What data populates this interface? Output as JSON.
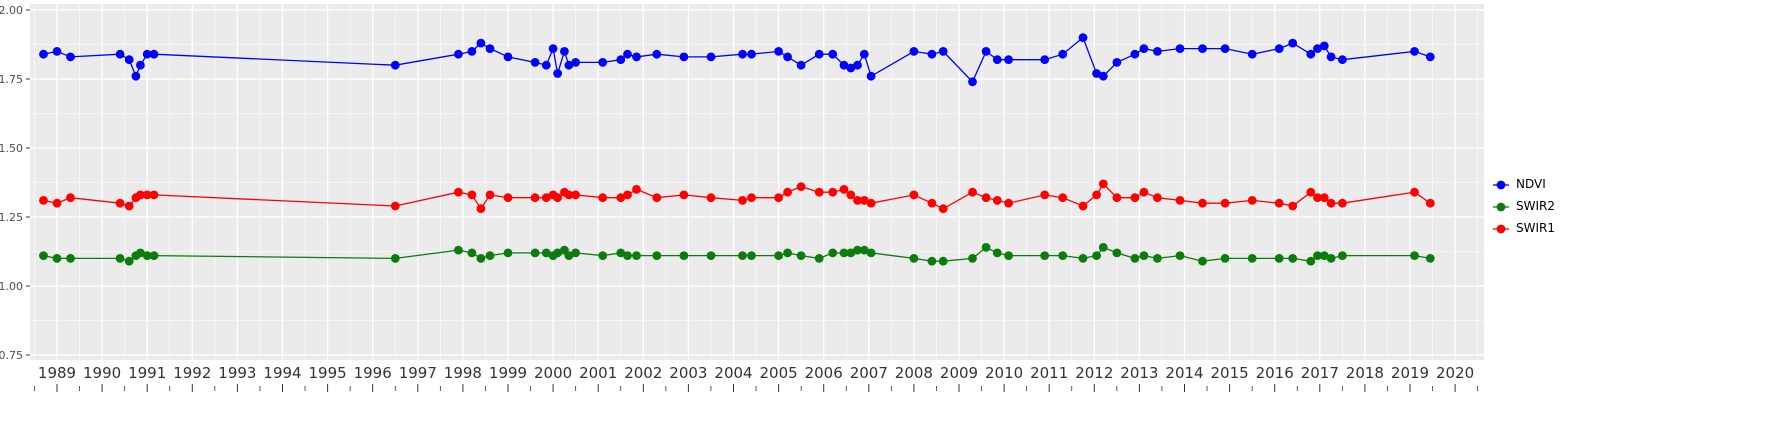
{
  "chart_data": {
    "type": "line",
    "title": "",
    "xlabel": "",
    "ylabel": "",
    "grid": "on",
    "panel_background": "#ebebeb",
    "grid_color": "#ffffff",
    "axis_text_color_y": "#4d4d4d",
    "axis_text_color_x": "#333333",
    "xlim": [
      1988.4,
      2020.6
    ],
    "ylim": [
      0.73,
      2.02
    ],
    "x_ticks": {
      "values": [
        1989,
        1990,
        1991,
        1992,
        1993,
        1994,
        1995,
        1996,
        1997,
        1998,
        1999,
        2000,
        2001,
        2002,
        2003,
        2004,
        2005,
        2006,
        2007,
        2008,
        2009,
        2010,
        2011,
        2012,
        2013,
        2014,
        2015,
        2016,
        2017,
        2018,
        2019,
        2020
      ],
      "labels": [
        "1989",
        "1990",
        "1991",
        "1992",
        "1993",
        "1994",
        "1995",
        "1996",
        "1997",
        "1998",
        "1999",
        "2000",
        "2001",
        "2002",
        "2003",
        "2004",
        "2005",
        "2006",
        "2007",
        "2008",
        "2009",
        "2010",
        "2011",
        "2012",
        "2013",
        "2014",
        "2015",
        "2016",
        "2017",
        "2018",
        "2019",
        "2020"
      ]
    },
    "y_ticks": {
      "values": [
        2.0,
        1.75,
        1.5,
        1.25,
        1.0,
        0.75
      ],
      "labels": [
        "2.00",
        "1.75",
        "1.50",
        "1.25",
        "1.00",
        "0.75"
      ]
    },
    "x": [
      1988.7,
      1989.0,
      1989.3,
      1990.4,
      1990.6,
      1990.75,
      1990.85,
      1991.0,
      1991.15,
      1996.5,
      1997.9,
      1998.2,
      1998.4,
      1998.6,
      1999.0,
      1999.6,
      1999.85,
      2000.0,
      2000.1,
      2000.25,
      2000.35,
      2000.5,
      2001.1,
      2001.5,
      2001.65,
      2001.85,
      2002.3,
      2002.9,
      2003.5,
      2004.2,
      2004.4,
      2005.0,
      2005.2,
      2005.5,
      2005.9,
      2006.2,
      2006.45,
      2006.6,
      2006.75,
      2006.9,
      2007.05,
      2008.0,
      2008.4,
      2008.65,
      2009.3,
      2009.6,
      2009.85,
      2010.1,
      2010.9,
      2011.3,
      2011.75,
      2012.05,
      2012.2,
      2012.5,
      2012.9,
      2013.1,
      2013.4,
      2013.9,
      2014.4,
      2014.9,
      2015.5,
      2016.1,
      2016.4,
      2016.8,
      2016.95,
      2017.1,
      2017.25,
      2017.5,
      2019.1,
      2019.45
    ],
    "series": [
      {
        "name": "NDVI",
        "color": "#0000ff",
        "values": [
          1.84,
          1.85,
          1.83,
          1.84,
          1.82,
          1.76,
          1.8,
          1.84,
          1.84,
          1.8,
          1.84,
          1.85,
          1.88,
          1.86,
          1.83,
          1.81,
          1.8,
          1.86,
          1.77,
          1.85,
          1.8,
          1.81,
          1.81,
          1.82,
          1.84,
          1.83,
          1.84,
          1.83,
          1.83,
          1.84,
          1.84,
          1.85,
          1.83,
          1.8,
          1.84,
          1.84,
          1.8,
          1.79,
          1.8,
          1.84,
          1.76,
          1.85,
          1.84,
          1.85,
          1.74,
          1.85,
          1.82,
          1.82,
          1.82,
          1.84,
          1.9,
          1.77,
          1.76,
          1.81,
          1.84,
          1.86,
          1.85,
          1.86,
          1.86,
          1.86,
          1.84,
          1.86,
          1.88,
          1.84,
          1.86,
          1.87,
          1.83,
          1.82,
          1.85,
          1.83
        ]
      },
      {
        "name": "SWIR1",
        "color": "#ff0000",
        "values": [
          1.31,
          1.3,
          1.32,
          1.3,
          1.29,
          1.32,
          1.33,
          1.33,
          1.33,
          1.29,
          1.34,
          1.33,
          1.28,
          1.33,
          1.32,
          1.32,
          1.32,
          1.33,
          1.32,
          1.34,
          1.33,
          1.33,
          1.32,
          1.32,
          1.33,
          1.35,
          1.32,
          1.33,
          1.32,
          1.31,
          1.32,
          1.32,
          1.34,
          1.36,
          1.34,
          1.34,
          1.35,
          1.33,
          1.31,
          1.31,
          1.3,
          1.33,
          1.3,
          1.28,
          1.34,
          1.32,
          1.31,
          1.3,
          1.33,
          1.32,
          1.29,
          1.33,
          1.37,
          1.32,
          1.32,
          1.34,
          1.32,
          1.31,
          1.3,
          1.3,
          1.31,
          1.3,
          1.29,
          1.34,
          1.32,
          1.32,
          1.3,
          1.3,
          1.34,
          1.3
        ]
      },
      {
        "name": "SWIR2",
        "color": "#0c7c0c",
        "values": [
          1.11,
          1.1,
          1.1,
          1.1,
          1.09,
          1.11,
          1.12,
          1.11,
          1.11,
          1.1,
          1.13,
          1.12,
          1.1,
          1.11,
          1.12,
          1.12,
          1.12,
          1.11,
          1.12,
          1.13,
          1.11,
          1.12,
          1.11,
          1.12,
          1.11,
          1.11,
          1.11,
          1.11,
          1.11,
          1.11,
          1.11,
          1.11,
          1.12,
          1.11,
          1.1,
          1.12,
          1.12,
          1.12,
          1.13,
          1.13,
          1.12,
          1.1,
          1.09,
          1.09,
          1.1,
          1.14,
          1.12,
          1.11,
          1.11,
          1.11,
          1.1,
          1.11,
          1.14,
          1.12,
          1.1,
          1.11,
          1.1,
          1.11,
          1.09,
          1.1,
          1.1,
          1.1,
          1.1,
          1.09,
          1.11,
          1.11,
          1.1,
          1.11,
          1.11,
          1.1
        ]
      }
    ],
    "legend": {
      "position": "right",
      "entries": [
        {
          "label": "NDVI",
          "color": "#0000ff"
        },
        {
          "label": "SWIR2",
          "color": "#0c7c0c"
        },
        {
          "label": "SWIR1",
          "color": "#ff0000"
        }
      ]
    }
  }
}
